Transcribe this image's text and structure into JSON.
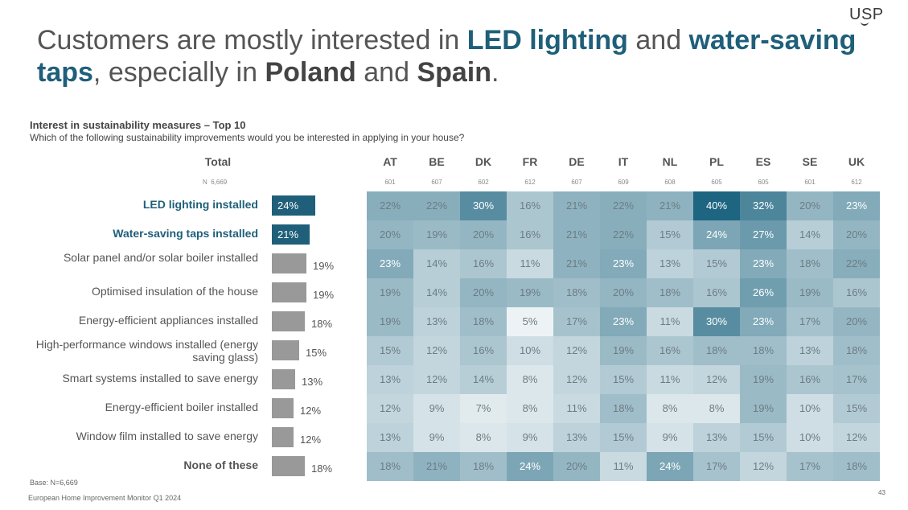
{
  "logo": "USP",
  "headline": {
    "p1": "Customers are mostly interested in ",
    "h1": "LED lighting",
    "p2": " and ",
    "h2": "water-saving taps",
    "p3": ", especially in ",
    "h3": "Poland",
    "p4": " and ",
    "h4": "Spain",
    "p5": "."
  },
  "chart_data": {
    "type": "heatmap",
    "title": "Interest in sustainability measures – Top 10",
    "subtitle": "Which of the following sustainability improvements would you be interested in applying in your house?",
    "total_header": "Total",
    "n_label": "N",
    "total_n": "6,669",
    "countries": [
      "AT",
      "BE",
      "DK",
      "FR",
      "DE",
      "IT",
      "NL",
      "PL",
      "ES",
      "SE",
      "UK"
    ],
    "country_n": [
      "601",
      "607",
      "602",
      "612",
      "607",
      "609",
      "608",
      "605",
      "605",
      "601",
      "612"
    ],
    "rows": [
      {
        "label": "LED lighting installed",
        "total": 24,
        "values": [
          22,
          22,
          30,
          16,
          21,
          22,
          21,
          40,
          32,
          20,
          23
        ]
      },
      {
        "label": "Water-saving taps installed",
        "total": 21,
        "values": [
          20,
          19,
          20,
          16,
          21,
          22,
          15,
          24,
          27,
          14,
          20
        ]
      },
      {
        "label": "Solar panel and/or solar boiler installed",
        "total": 19,
        "values": [
          23,
          14,
          16,
          11,
          21,
          23,
          13,
          15,
          23,
          18,
          22
        ]
      },
      {
        "label": "Optimised insulation of the house",
        "total": 19,
        "values": [
          19,
          14,
          20,
          19,
          18,
          20,
          18,
          16,
          26,
          19,
          16
        ]
      },
      {
        "label": "Energy-efficient appliances installed",
        "total": 18,
        "values": [
          19,
          13,
          18,
          5,
          17,
          23,
          11,
          30,
          23,
          17,
          20
        ]
      },
      {
        "label": "High-performance windows installed (energy saving glass)",
        "total": 15,
        "values": [
          15,
          12,
          16,
          10,
          12,
          19,
          16,
          18,
          18,
          13,
          18
        ]
      },
      {
        "label": "Smart systems installed to save energy",
        "total": 13,
        "values": [
          13,
          12,
          14,
          8,
          12,
          15,
          11,
          12,
          19,
          16,
          17
        ]
      },
      {
        "label": "Energy-efficient boiler installed",
        "total": 12,
        "values": [
          12,
          9,
          7,
          8,
          11,
          18,
          8,
          8,
          19,
          10,
          15
        ]
      },
      {
        "label": "Window film installed to save energy",
        "total": 12,
        "values": [
          13,
          9,
          8,
          9,
          13,
          15,
          9,
          13,
          15,
          10,
          12
        ]
      },
      {
        "label": "None of these",
        "total": 18,
        "values": [
          18,
          21,
          18,
          24,
          20,
          11,
          24,
          17,
          12,
          17,
          18
        ]
      }
    ],
    "highlight_rows": [
      0,
      1
    ],
    "colors": {
      "highlight_bar": "#1f5f7a",
      "bar": "#999999",
      "heat_low": "#ffffff",
      "heat_high": "#1d6580"
    }
  },
  "footer": {
    "base": "Base: N=6,669",
    "source": "European Home Improvement Monitor Q1 2024",
    "page": "43"
  }
}
